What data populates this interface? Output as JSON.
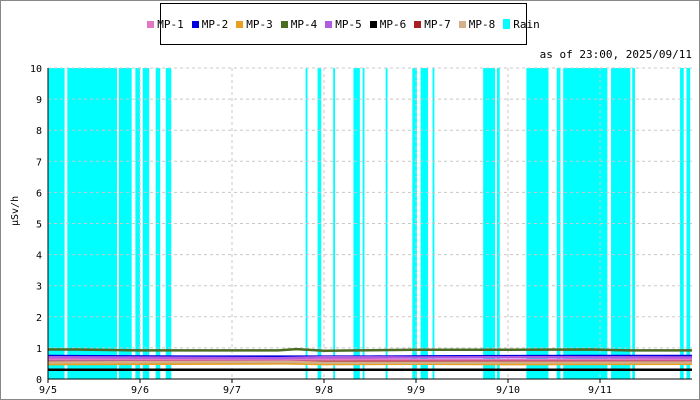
{
  "header": {
    "as_of": "as of 23:00, 2025/09/11"
  },
  "chart_data": {
    "type": "line",
    "ylabel": "μSv/h",
    "xlabel": "",
    "ylim": [
      0,
      10
    ],
    "y_ticks": [
      "0",
      "1",
      "2",
      "3",
      "4",
      "5",
      "6",
      "7",
      "8",
      "9",
      "10"
    ],
    "x_ticks": [
      "9/5",
      "9/6",
      "9/7",
      "9/8",
      "9/9",
      "9/10",
      "9/11"
    ],
    "x_range_days": [
      0,
      7
    ],
    "grid": true,
    "legend_position": "top",
    "series": [
      {
        "name": "MP-1",
        "color": "#e377c2",
        "values": [
          [
            0,
            0.63
          ],
          [
            0.75,
            0.63
          ],
          [
            2.6,
            0.6
          ],
          [
            3.0,
            0.64
          ],
          [
            4.0,
            0.6
          ],
          [
            5.0,
            0.6
          ],
          [
            7.0,
            0.62
          ]
        ]
      },
      {
        "name": "MP-2",
        "color": "#0000dd",
        "values": [
          [
            0,
            0.74
          ],
          [
            0.5,
            0.73
          ],
          [
            1.5,
            0.72
          ],
          [
            2.5,
            0.72
          ],
          [
            3.5,
            0.72
          ],
          [
            4.5,
            0.73
          ],
          [
            5.8,
            0.74
          ],
          [
            7.0,
            0.74
          ]
        ]
      },
      {
        "name": "MP-3",
        "color": "#e8a020",
        "values": [
          [
            0,
            0.48
          ],
          [
            2.6,
            0.5
          ],
          [
            3.0,
            0.48
          ],
          [
            4.0,
            0.49
          ],
          [
            5.0,
            0.48
          ],
          [
            7.0,
            0.49
          ]
        ]
      },
      {
        "name": "MP-4",
        "color": "#4a6b20",
        "values": [
          [
            0,
            0.95
          ],
          [
            0.3,
            0.95
          ],
          [
            1.0,
            0.92
          ],
          [
            2.5,
            0.92
          ],
          [
            2.7,
            0.96
          ],
          [
            3.0,
            0.91
          ],
          [
            4.0,
            0.94
          ],
          [
            4.8,
            0.94
          ],
          [
            5.9,
            0.95
          ],
          [
            6.3,
            0.92
          ],
          [
            7.0,
            0.92
          ]
        ]
      },
      {
        "name": "MP-5",
        "color": "#b05ce0",
        "values": [
          [
            0,
            0.7
          ],
          [
            2.5,
            0.67
          ],
          [
            3.0,
            0.7
          ],
          [
            4.0,
            0.69
          ],
          [
            5.0,
            0.7
          ],
          [
            7.0,
            0.69
          ]
        ]
      },
      {
        "name": "MP-6",
        "color": "#000000",
        "values": [
          [
            0,
            0.3
          ],
          [
            7.0,
            0.3
          ]
        ]
      },
      {
        "name": "MP-7",
        "color": "#aa2020",
        "values": [
          [
            0,
            0.55
          ],
          [
            7.0,
            0.55
          ]
        ]
      },
      {
        "name": "MP-8",
        "color": "#d4b08a",
        "values": [
          [
            0,
            0.53
          ],
          [
            2.6,
            0.55
          ],
          [
            3.0,
            0.52
          ],
          [
            7.0,
            0.53
          ]
        ]
      }
    ],
    "rain": {
      "name": "Rain",
      "color": "#00ffff",
      "periods_days": [
        [
          0.0,
          0.18
        ],
        [
          0.21,
          0.75
        ],
        [
          0.77,
          0.91
        ],
        [
          0.95,
          1.0
        ],
        [
          1.03,
          1.1
        ],
        [
          1.17,
          1.22
        ],
        [
          1.28,
          1.34
        ],
        [
          2.8,
          2.82
        ],
        [
          2.93,
          2.97
        ],
        [
          3.1,
          3.12
        ],
        [
          3.32,
          3.39
        ],
        [
          3.42,
          3.44
        ],
        [
          3.67,
          3.69
        ],
        [
          3.96,
          4.01
        ],
        [
          4.05,
          4.13
        ],
        [
          4.18,
          4.2
        ],
        [
          4.73,
          4.86
        ],
        [
          4.88,
          4.91
        ],
        [
          5.2,
          5.44
        ],
        [
          5.53,
          5.57
        ],
        [
          5.6,
          6.08
        ],
        [
          6.12,
          6.33
        ],
        [
          6.35,
          6.38
        ],
        [
          6.87,
          6.91
        ],
        [
          6.94,
          6.98
        ]
      ]
    }
  }
}
